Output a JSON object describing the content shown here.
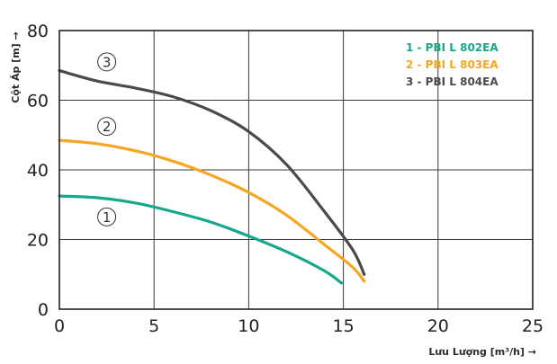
{
  "chart_data": {
    "type": "line",
    "xlabel": "Lưu Lượng [m³/h] →",
    "ylabel": "Cột Áp [m] →",
    "xlim": [
      0,
      25
    ],
    "ylim": [
      0,
      80
    ],
    "x_ticks": [
      "0",
      "5",
      "10",
      "15",
      "20",
      "25"
    ],
    "y_ticks": [
      "0",
      "20",
      "40",
      "60",
      "80"
    ],
    "grid": true,
    "legend_position": "top-right",
    "series": [
      {
        "name": "1 - PBI L 802EA",
        "marker": "1",
        "color": "#16a88a",
        "x": [
          0,
          2,
          4,
          6,
          8,
          10,
          12,
          14,
          14.9
        ],
        "y": [
          32.5,
          32,
          30.5,
          28,
          25,
          21,
          16.5,
          11,
          7.5
        ]
      },
      {
        "name": "2 - PBI L 803EA",
        "marker": "2",
        "color": "#f5a623",
        "x": [
          0,
          2,
          4,
          6,
          8,
          10,
          12,
          14,
          15.5,
          16.1
        ],
        "y": [
          48.5,
          47.5,
          45.5,
          42.5,
          38.5,
          33.5,
          27,
          18.5,
          12,
          8
        ]
      },
      {
        "name": "3 - PBI L 804EA",
        "marker": "3",
        "color": "#4a4a4a",
        "x": [
          0,
          2,
          4,
          6,
          8,
          10,
          12,
          14,
          15.5,
          16.1
        ],
        "y": [
          68.5,
          65.5,
          63.5,
          61,
          57,
          51,
          41.5,
          28,
          17,
          10
        ]
      }
    ]
  }
}
